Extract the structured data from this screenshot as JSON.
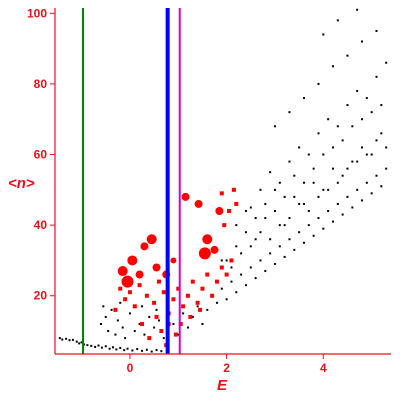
{
  "chart_data": {
    "type": "scatter",
    "xlabel": "E",
    "ylabel": "<n>",
    "xlim": [
      -1.55,
      5.4
    ],
    "ylim": [
      3.5,
      101.5
    ],
    "x_ticks": [
      "0",
      "2",
      "4"
    ],
    "x_tick_values": [
      0,
      2,
      4
    ],
    "y_ticks": [
      "20",
      "40",
      "60",
      "80",
      "100"
    ],
    "y_tick_values": [
      20,
      40,
      60,
      80,
      100
    ],
    "vertical_lines": [
      {
        "x": -0.97,
        "color": "#008000",
        "style": "thin"
      },
      {
        "x": 0.78,
        "color": "#0000ff",
        "style": "thick"
      },
      {
        "x": 1.03,
        "color": "#d000d0",
        "style": "thin"
      }
    ],
    "series": [
      {
        "color": "#000000",
        "marker": "dot",
        "points": [
          [
            -1.45,
            8.0
          ],
          [
            -1.4,
            7.6
          ],
          [
            -1.32,
            7.8
          ],
          [
            -1.25,
            7.4
          ],
          [
            -1.18,
            7.5
          ],
          [
            -1.1,
            7.0
          ],
          [
            -1.05,
            6.5
          ],
          [
            -1.0,
            6.8
          ],
          [
            -0.95,
            6.2
          ],
          [
            -0.88,
            6.0
          ],
          [
            -0.8,
            5.8
          ],
          [
            -0.72,
            5.5
          ],
          [
            -0.65,
            5.9
          ],
          [
            -0.58,
            5.3
          ],
          [
            -0.5,
            5.7
          ],
          [
            -0.42,
            5.0
          ],
          [
            -0.35,
            5.4
          ],
          [
            -0.28,
            4.8
          ],
          [
            -0.2,
            5.2
          ],
          [
            -0.12,
            4.6
          ],
          [
            -0.05,
            5.0
          ],
          [
            0.05,
            4.5
          ],
          [
            0.15,
            4.9
          ],
          [
            0.25,
            4.4
          ],
          [
            0.35,
            4.7
          ],
          [
            0.45,
            4.2
          ],
          [
            0.55,
            4.6
          ],
          [
            0.65,
            4.3
          ],
          [
            -0.6,
            12.0
          ],
          [
            -0.5,
            14.0
          ],
          [
            -0.45,
            10.0
          ],
          [
            -0.38,
            16.0
          ],
          [
            -0.3,
            9.0
          ],
          [
            -0.25,
            13.0
          ],
          [
            -0.15,
            11.0
          ],
          [
            -0.1,
            8.0
          ],
          [
            0.0,
            15.0
          ],
          [
            0.1,
            10.0
          ],
          [
            0.2,
            12.0
          ],
          [
            0.3,
            9.0
          ],
          [
            0.4,
            14.0
          ],
          [
            0.5,
            11.0
          ],
          [
            0.6,
            13.0
          ],
          [
            0.7,
            8.0
          ],
          [
            -0.55,
            17.0
          ],
          [
            -0.2,
            18.0
          ],
          [
            0.25,
            17.0
          ],
          [
            0.55,
            16.0
          ],
          [
            0.9,
            12.0
          ],
          [
            1.0,
            9.0
          ],
          [
            1.1,
            15.0
          ],
          [
            1.2,
            11.0
          ],
          [
            1.3,
            14.0
          ],
          [
            1.4,
            17.0
          ],
          [
            1.5,
            12.0
          ],
          [
            1.6,
            16.0
          ],
          [
            1.7,
            20.0
          ],
          [
            1.8,
            18.0
          ],
          [
            1.9,
            22.0
          ],
          [
            2.0,
            19.0
          ],
          [
            2.1,
            24.0
          ],
          [
            2.2,
            21.0
          ],
          [
            2.3,
            26.0
          ],
          [
            2.4,
            23.0
          ],
          [
            2.5,
            28.0
          ],
          [
            2.6,
            25.0
          ],
          [
            2.7,
            30.0
          ],
          [
            2.8,
            27.0
          ],
          [
            2.9,
            32.0
          ],
          [
            3.0,
            29.0
          ],
          [
            3.1,
            34.0
          ],
          [
            3.2,
            31.0
          ],
          [
            3.3,
            36.0
          ],
          [
            3.4,
            33.0
          ],
          [
            3.5,
            38.0
          ],
          [
            3.6,
            35.0
          ],
          [
            3.7,
            40.0
          ],
          [
            3.8,
            37.0
          ],
          [
            3.9,
            42.0
          ],
          [
            4.0,
            39.0
          ],
          [
            4.1,
            44.0
          ],
          [
            4.2,
            41.0
          ],
          [
            4.3,
            46.0
          ],
          [
            4.4,
            43.0
          ],
          [
            4.5,
            48.0
          ],
          [
            4.6,
            45.0
          ],
          [
            4.7,
            50.0
          ],
          [
            4.8,
            47.0
          ],
          [
            4.9,
            52.0
          ],
          [
            5.0,
            49.0
          ],
          [
            5.1,
            54.0
          ],
          [
            5.2,
            51.0
          ],
          [
            5.3,
            56.0
          ],
          [
            2.0,
            30.0
          ],
          [
            2.2,
            34.0
          ],
          [
            2.4,
            38.0
          ],
          [
            2.6,
            36.0
          ],
          [
            2.8,
            42.0
          ],
          [
            3.0,
            44.0
          ],
          [
            3.2,
            40.0
          ],
          [
            3.4,
            48.0
          ],
          [
            3.6,
            46.0
          ],
          [
            3.8,
            52.0
          ],
          [
            4.0,
            50.0
          ],
          [
            4.2,
            56.0
          ],
          [
            4.4,
            54.0
          ],
          [
            4.6,
            58.0
          ],
          [
            4.8,
            62.0
          ],
          [
            5.0,
            60.0
          ],
          [
            5.2,
            66.0
          ],
          [
            2.5,
            45.0
          ],
          [
            2.7,
            50.0
          ],
          [
            2.9,
            55.0
          ],
          [
            3.1,
            52.0
          ],
          [
            3.3,
            58.0
          ],
          [
            3.5,
            62.0
          ],
          [
            3.7,
            60.0
          ],
          [
            3.9,
            66.0
          ],
          [
            4.1,
            70.0
          ],
          [
            4.3,
            68.0
          ],
          [
            4.5,
            74.0
          ],
          [
            4.7,
            78.0
          ],
          [
            4.9,
            76.0
          ],
          [
            5.1,
            82.0
          ],
          [
            5.3,
            86.0
          ],
          [
            3.0,
            68.0
          ],
          [
            3.3,
            72.0
          ],
          [
            3.6,
            76.0
          ],
          [
            3.9,
            80.0
          ],
          [
            4.2,
            85.0
          ],
          [
            4.5,
            88.0
          ],
          [
            4.8,
            92.0
          ],
          [
            5.1,
            95.0
          ],
          [
            4.0,
            94.0
          ],
          [
            4.3,
            98.0
          ],
          [
            4.7,
            101.0
          ],
          [
            1.9,
            30.0
          ],
          [
            2.1,
            28.0
          ],
          [
            2.3,
            32.0
          ],
          [
            2.5,
            34.0
          ],
          [
            2.7,
            38.0
          ],
          [
            2.9,
            36.0
          ],
          [
            3.1,
            40.0
          ],
          [
            3.3,
            42.0
          ],
          [
            3.5,
            46.0
          ],
          [
            3.7,
            44.0
          ],
          [
            3.9,
            48.0
          ],
          [
            4.1,
            50.0
          ],
          [
            4.3,
            52.0
          ],
          [
            4.5,
            56.0
          ],
          [
            4.7,
            58.0
          ],
          [
            4.9,
            60.0
          ],
          [
            5.1,
            64.0
          ],
          [
            5.3,
            62.0
          ],
          [
            2.2,
            40.0
          ],
          [
            2.4,
            44.0
          ],
          [
            2.6,
            42.0
          ],
          [
            2.8,
            46.0
          ],
          [
            3.0,
            50.0
          ],
          [
            3.2,
            48.0
          ],
          [
            3.4,
            54.0
          ],
          [
            3.6,
            52.0
          ],
          [
            3.8,
            56.0
          ],
          [
            4.0,
            60.0
          ],
          [
            4.2,
            62.0
          ],
          [
            4.4,
            64.0
          ],
          [
            4.6,
            68.0
          ],
          [
            4.8,
            70.0
          ],
          [
            5.0,
            72.0
          ],
          [
            5.2,
            74.0
          ]
        ]
      },
      {
        "color": "#ff0000",
        "marker": "circle/square",
        "points": [
          [
            -0.15,
            27.0,
            5
          ],
          [
            -0.05,
            24.0,
            6
          ],
          [
            0.05,
            30.0,
            5
          ],
          [
            0.2,
            26.0,
            4
          ],
          [
            0.3,
            34.0,
            4
          ],
          [
            0.45,
            36.0,
            5
          ],
          [
            0.55,
            28.0,
            4
          ],
          [
            0.75,
            26.0,
            4
          ],
          [
            0.9,
            30.0,
            3
          ],
          [
            1.15,
            48.0,
            4
          ],
          [
            1.42,
            46.0,
            4
          ],
          [
            1.55,
            32.0,
            6
          ],
          [
            1.6,
            36.0,
            5
          ],
          [
            1.75,
            33.0,
            4
          ],
          [
            1.85,
            44.0,
            4
          ],
          [
            -0.3,
            16.0,
            2
          ],
          [
            -0.2,
            22.0,
            2
          ],
          [
            -0.1,
            19.0,
            2
          ],
          [
            0.0,
            21.0,
            2
          ],
          [
            0.1,
            17.0,
            2
          ],
          [
            0.2,
            23.0,
            2
          ],
          [
            0.35,
            20.0,
            2
          ],
          [
            0.5,
            18.0,
            2
          ],
          [
            0.6,
            24.0,
            2
          ],
          [
            0.7,
            21.0,
            2
          ],
          [
            0.8,
            15.0,
            2
          ],
          [
            0.9,
            19.0,
            2
          ],
          [
            1.0,
            22.0,
            2
          ],
          [
            1.1,
            17.0,
            2
          ],
          [
            1.2,
            20.0,
            2
          ],
          [
            1.3,
            24.0,
            2
          ],
          [
            1.4,
            18.0,
            2
          ],
          [
            1.5,
            22.0,
            2
          ],
          [
            1.6,
            26.0,
            2
          ],
          [
            1.7,
            20.0,
            2
          ],
          [
            1.8,
            24.0,
            2
          ],
          [
            1.9,
            28.0,
            2
          ],
          [
            2.0,
            26.0,
            2
          ],
          [
            2.1,
            30.0,
            2
          ],
          [
            1.95,
            40.0,
            2
          ],
          [
            2.05,
            44.0,
            2
          ],
          [
            1.9,
            49.0,
            2
          ],
          [
            2.15,
            50.0,
            2
          ],
          [
            2.2,
            46.0,
            2
          ],
          [
            0.55,
            14.0,
            2
          ],
          [
            0.65,
            10.0,
            2
          ],
          [
            0.8,
            12.0,
            2
          ],
          [
            1.05,
            12.0,
            2
          ],
          [
            1.25,
            14.0,
            2
          ],
          [
            1.45,
            16.0,
            2
          ],
          [
            0.95,
            9.0,
            2
          ],
          [
            0.4,
            8.0,
            2
          ],
          [
            0.75,
            6.0,
            2
          ],
          [
            0.25,
            12.0,
            2
          ]
        ]
      }
    ]
  }
}
